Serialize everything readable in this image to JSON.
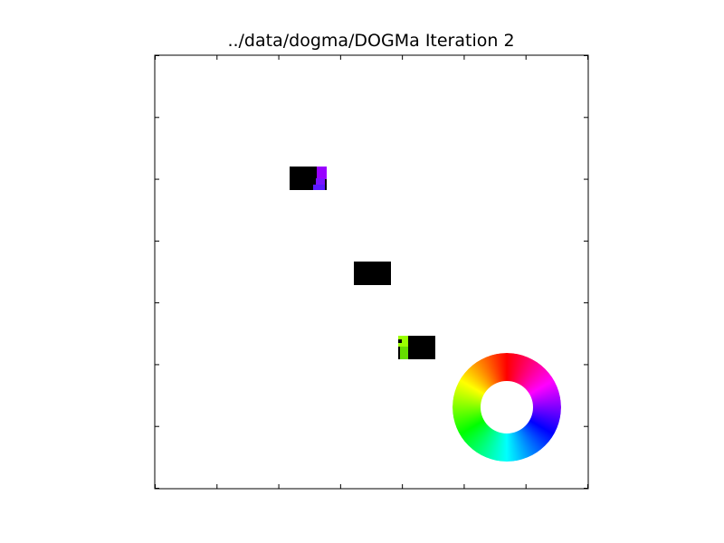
{
  "chart_data": {
    "type": "heatmap",
    "title": "../data/dogma/DOGMa Iteration 2",
    "xlabel": "",
    "ylabel": "",
    "grid": false,
    "tick_labels_shown": false,
    "colorwheel": {
      "placement": "bottom-right",
      "colors": [
        "#ff0000",
        "#ff00ff",
        "#0000ff",
        "#00ffff",
        "#00ff00",
        "#ffff00"
      ]
    },
    "cells": [
      {
        "name": "cell-group-top",
        "row": 0,
        "col": 0,
        "color": "#000000",
        "subcells": [
          {
            "color": "#9900ff"
          },
          {
            "color": "#7a14ff"
          },
          {
            "color": "#5a1aff"
          }
        ]
      },
      {
        "name": "cell-group-middle",
        "row": 1,
        "col": 1,
        "color": "#000000",
        "subcells": []
      },
      {
        "name": "cell-group-bottom",
        "row": 2,
        "col": 2,
        "color": "#000000",
        "subcells": [
          {
            "color": "#99ff00"
          },
          {
            "color": "#66dd00"
          },
          {
            "color": "#000000"
          }
        ]
      }
    ]
  }
}
